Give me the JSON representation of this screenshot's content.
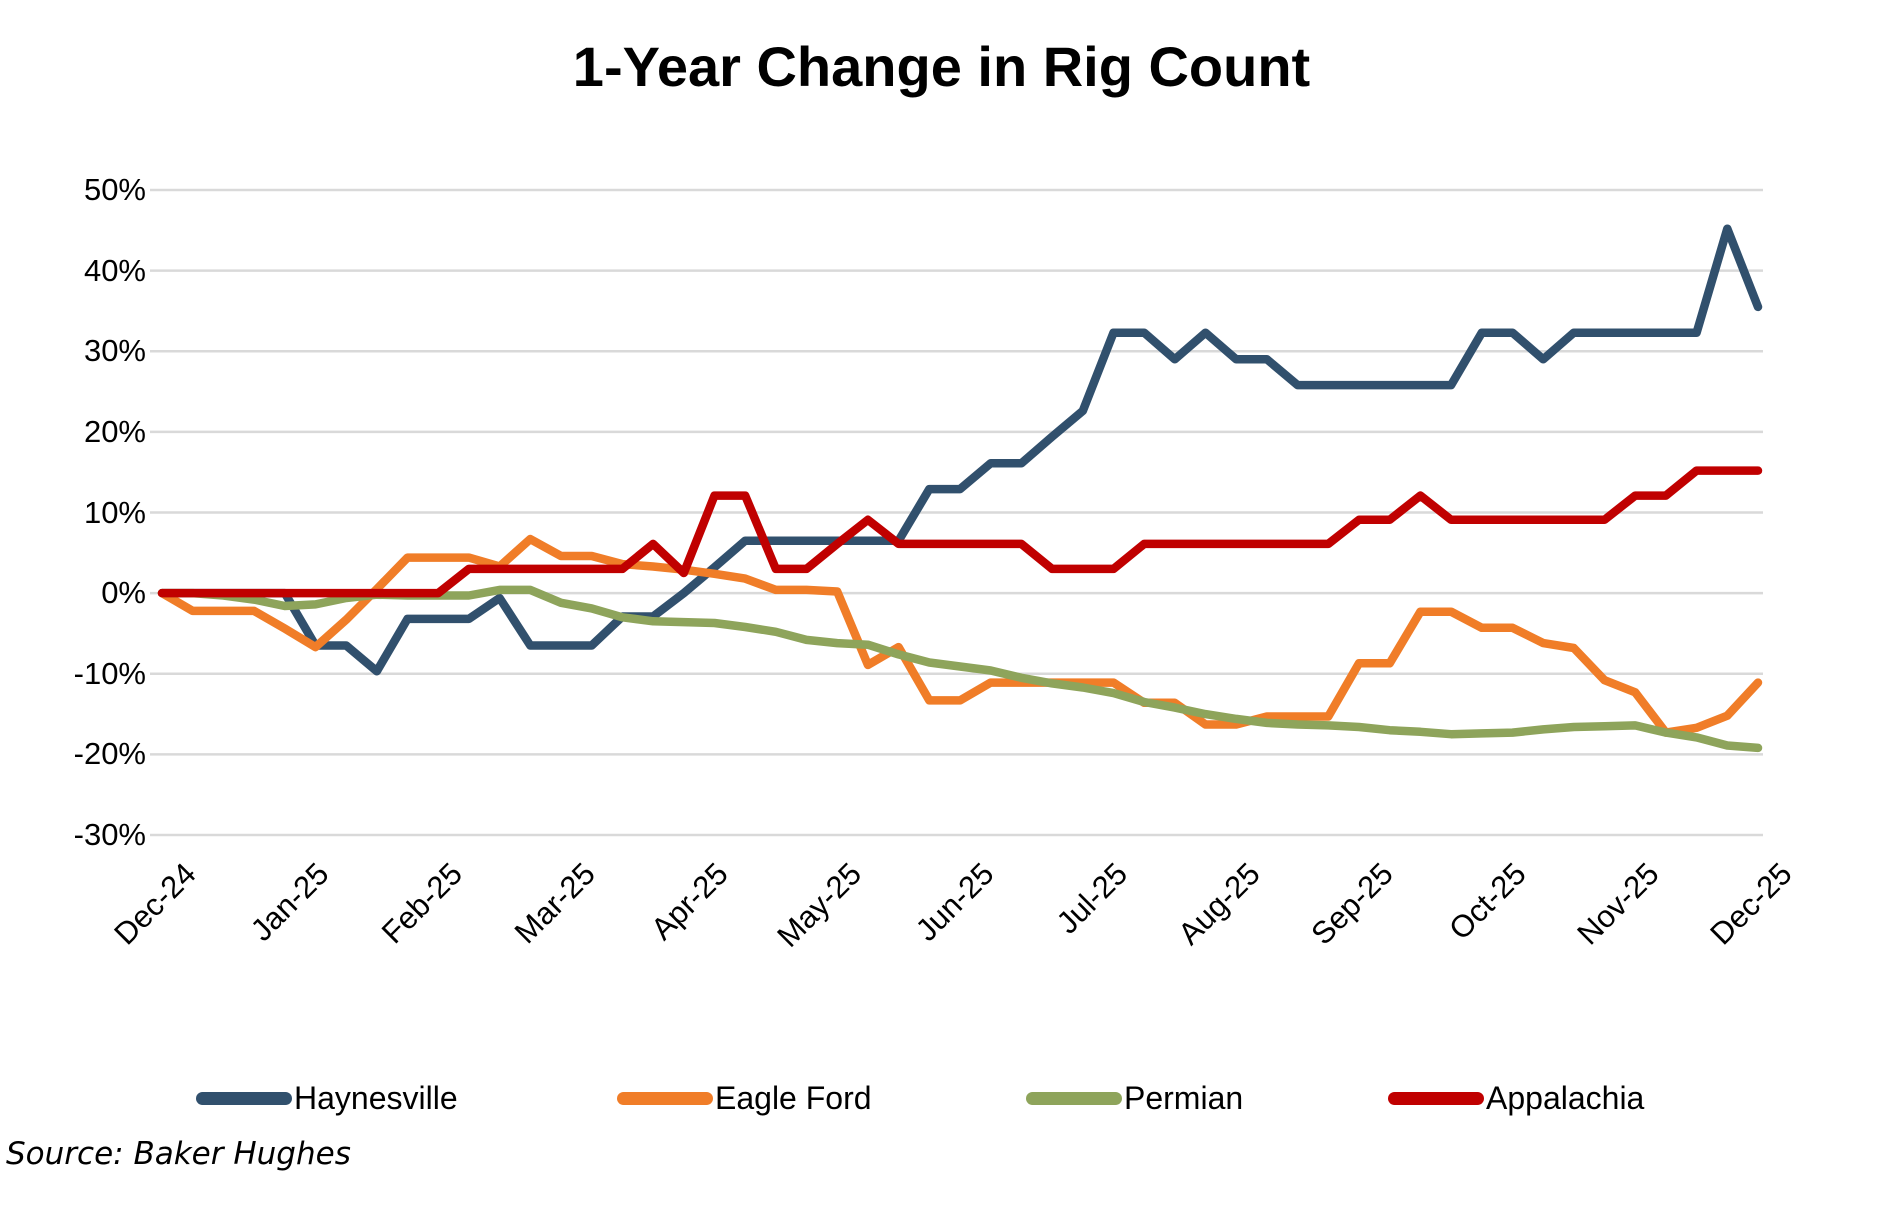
{
  "title": "1-Year Change in Rig Count",
  "source": "Source: Baker Hughes",
  "colors": {
    "background": "#ffffff",
    "gridline": "#d9d9d9",
    "text": "#000000"
  },
  "chart_data": {
    "type": "line",
    "title": "1-Year Change in Rig Count",
    "xlabel": "",
    "ylabel": "",
    "ylim": [
      -30,
      50
    ],
    "grid": "horizontal",
    "legend_position": "bottom",
    "y_tick_labels": [
      "50%",
      "40%",
      "30%",
      "20%",
      "10%",
      "0%",
      "-10%",
      "-20%",
      "-30%"
    ],
    "y_tick_values": [
      50,
      40,
      30,
      20,
      10,
      0,
      -10,
      -20,
      -30
    ],
    "x_tick_labels": [
      "Dec-24",
      "Jan-25",
      "Feb-25",
      "Mar-25",
      "Apr-25",
      "May-25",
      "Jun-25",
      "Jul-25",
      "Aug-25",
      "Sep-25",
      "Oct-25",
      "Nov-25",
      "Dec-25"
    ],
    "x_unit": "weekly",
    "n_points": 53,
    "series": [
      {
        "name": "Haynesville",
        "color": "#31506D",
        "values": [
          0,
          0,
          0,
          0,
          0,
          -6.5,
          -6.5,
          -9.7,
          -3.2,
          -3.2,
          -3.2,
          -0.6,
          -6.5,
          -6.5,
          -6.5,
          -2.9,
          -2.9,
          0,
          3.2,
          6.5,
          6.5,
          6.5,
          6.5,
          6.5,
          6.5,
          12.9,
          12.9,
          16.1,
          16.1,
          19.4,
          22.6,
          32.3,
          32.3,
          29,
          32.3,
          29,
          29,
          25.8,
          25.8,
          25.8,
          25.8,
          25.8,
          25.8,
          32.3,
          32.3,
          29,
          32.3,
          32.3,
          32.3,
          32.3,
          32.3,
          45.2,
          35.5
        ]
      },
      {
        "name": "Eagle Ford",
        "color": "#F07D28",
        "values": [
          0,
          -2.2,
          -2.2,
          -2.2,
          -4.4,
          -6.7,
          -3.3,
          0.5,
          4.4,
          4.4,
          4.4,
          3.3,
          6.7,
          4.6,
          4.6,
          3.6,
          3.3,
          2.9,
          2.4,
          1.8,
          0.4,
          0.4,
          0.2,
          -8.9,
          -6.7,
          -13.3,
          -13.3,
          -11.1,
          -11.1,
          -11.1,
          -11.1,
          -11.1,
          -13.6,
          -13.6,
          -16.3,
          -16.3,
          -15.3,
          -15.3,
          -15.3,
          -8.7,
          -8.7,
          -2.3,
          -2.3,
          -4.3,
          -4.3,
          -6.2,
          -6.8,
          -10.8,
          -12.3,
          -17.3,
          -16.7,
          -15.2,
          -11.1
        ]
      },
      {
        "name": "Permian",
        "color": "#8EA45B",
        "values": [
          0,
          0,
          -0.3,
          -0.8,
          -1.6,
          -1.4,
          -0.6,
          -0.2,
          -0.3,
          -0.3,
          -0.3,
          0.4,
          0.4,
          -1.2,
          -1.9,
          -3,
          -3.5,
          -3.6,
          -3.7,
          -4.2,
          -4.8,
          -5.8,
          -6.2,
          -6.4,
          -7.6,
          -8.6,
          -9.1,
          -9.6,
          -10.5,
          -11.2,
          -11.7,
          -12.4,
          -13.5,
          -14.2,
          -15,
          -15.6,
          -16.1,
          -16.3,
          -16.4,
          -16.6,
          -17,
          -17.2,
          -17.5,
          -17.4,
          -17.3,
          -16.9,
          -16.6,
          -16.5,
          -16.4,
          -17.3,
          -17.9,
          -18.9,
          -19.2
        ]
      },
      {
        "name": "Appalachia",
        "color": "#C00000",
        "values": [
          0,
          0,
          0,
          0,
          0,
          0,
          0,
          0,
          0,
          0,
          3,
          3,
          3,
          3,
          3,
          3,
          6.1,
          2.5,
          12.1,
          12.1,
          3,
          3,
          6.1,
          9.1,
          6.1,
          6.1,
          6.1,
          6.1,
          6.1,
          3,
          3,
          3,
          6.1,
          6.1,
          6.1,
          6.1,
          6.1,
          6.1,
          6.1,
          9.1,
          9.1,
          12.1,
          9.1,
          9.1,
          9.1,
          9.1,
          9.1,
          9.1,
          12.1,
          12.1,
          15.2,
          15.2,
          15.2
        ]
      }
    ]
  }
}
